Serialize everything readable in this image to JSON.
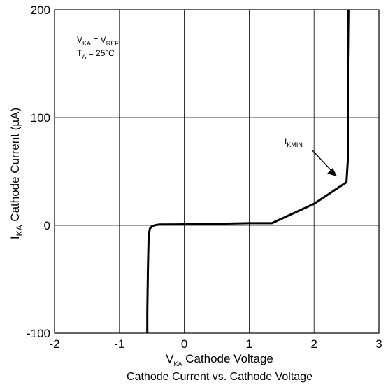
{
  "chart_data": {
    "type": "line",
    "title": "Cathode Current vs. Cathode Voltage",
    "xlabel": {
      "main": "V",
      "sub": "KA",
      "rest": " Cathode Voltage"
    },
    "ylabel": {
      "main": "I",
      "sub": "KA",
      "rest": " Cathode Current (µA)"
    },
    "xlim": [
      -2,
      3
    ],
    "ylim": [
      -100,
      200
    ],
    "xticks": [
      -2,
      -1,
      0,
      1,
      2,
      3
    ],
    "xtick_labels": [
      "-2",
      "-1",
      "0",
      "1",
      "2",
      "3"
    ],
    "yticks": [
      -100,
      0,
      100,
      200
    ],
    "ytick_labels": [
      "-100",
      "0",
      "100",
      "200"
    ],
    "grid": true,
    "conditions": [
      {
        "main": "V",
        "sub": "KA",
        "mid": " = V",
        "sub2": "REF"
      },
      {
        "main": "T",
        "sub": "A",
        "mid": " = 25°C",
        "sub2": ""
      }
    ],
    "annotation": {
      "main": "I",
      "sub": "KMIN",
      "points_to": [
        2.47,
        44
      ]
    },
    "series": [
      {
        "x": [
          -0.57,
          -0.57,
          -0.56,
          -0.55,
          -0.53,
          -0.5,
          -0.46,
          -0.42,
          -0.38,
          0.0,
          0.5,
          1.0,
          1.35,
          2.0,
          2.5,
          2.52,
          2.52,
          2.53
        ],
        "y": [
          -100,
          -80,
          -40,
          -10,
          -3,
          -1,
          0,
          0.5,
          0.8,
          1,
          1.5,
          2,
          2,
          20,
          40,
          60,
          150,
          200
        ]
      }
    ]
  }
}
